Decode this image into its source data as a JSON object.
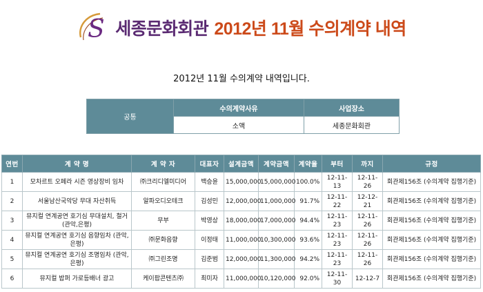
{
  "header": {
    "logo_letter": "S",
    "brand": "세종문화회관",
    "headline": "2012년 11월 수의계약 내역"
  },
  "subtitle": "2012년 11월 수의계약 내역입니다.",
  "info_table": {
    "row_label": "공통",
    "headers": [
      "수의계약사유",
      "사업장소"
    ],
    "values": [
      "소액",
      "세종문화회관"
    ]
  },
  "contracts": {
    "headers": [
      "연번",
      "계 약 명",
      "계 약 자",
      "대표자",
      "설계금액",
      "계약금액",
      "계약율",
      "부터",
      "까지",
      "규정"
    ],
    "rows": [
      {
        "no": "1",
        "name": "모차르트 오페라 시즌 영상장비 임차",
        "contractor": "㈜크리디엘미디어",
        "rep": "백승윤",
        "design": "15,000,000",
        "amount": "15,000,000",
        "rate": "100.0%",
        "from": "12-11-13",
        "to": "12-11-26",
        "rule": "회관제156조 (수의계약 집행기준)"
      },
      {
        "no": "2",
        "name": "서울남산국악당 무대 자산취득",
        "contractor": "알파오디오테크",
        "rep": "김성민",
        "design": "12,000,000",
        "amount": "11,000,000",
        "rate": "91.7%",
        "from": "12-11-22",
        "to": "12-12-21",
        "rule": "회관제156조 (수의계약 집행기준)"
      },
      {
        "no": "3",
        "name": "뮤지컬 연계공연 호기심 무대설치, 철거(관악,은평)",
        "contractor": "무부",
        "rep": "박영상",
        "design": "18,000,000",
        "amount": "17,000,000",
        "rate": "94.4%",
        "from": "12-11-23",
        "to": "12-11-26",
        "rule": "회관제156조 (수의계약 집행기준)"
      },
      {
        "no": "4",
        "name": "뮤지컬 연계공연 호기심 음향임차 (관악,은평)",
        "contractor": "㈜문화음향",
        "rep": "이정태",
        "design": "11,000,000",
        "amount": "10,300,000",
        "rate": "93.6%",
        "from": "12-11-23",
        "to": "12-11-26",
        "rule": "회관제156조 (수의계약 집행기준)"
      },
      {
        "no": "5",
        "name": "뮤지컬 연계공연 호기심 조명임차 (관악,은평)",
        "contractor": "㈜그린조명",
        "rep": "김준범",
        "design": "12,000,000",
        "amount": "11,300,000",
        "rate": "94.2%",
        "from": "12-11-23",
        "to": "12-11-26",
        "rule": "회관제156조 (수의계약 집행기준)"
      },
      {
        "no": "6",
        "name": "뮤지컬 밥퍼 가로등배너 광고",
        "contractor": "케이팝콘텐츠㈜",
        "rep": "최미자",
        "design": "11,000,000",
        "amount": "10,120,000",
        "rate": "92.0%",
        "from": "12-11-30",
        "to": "12-12-7",
        "rule": "회관제156조 (수의계약 집행기준)"
      }
    ]
  },
  "colors": {
    "brand": "#5a2a72",
    "headline": "#cc4a1a",
    "table_header": "#5e8b98",
    "logo_gold": "#d69a3a"
  }
}
